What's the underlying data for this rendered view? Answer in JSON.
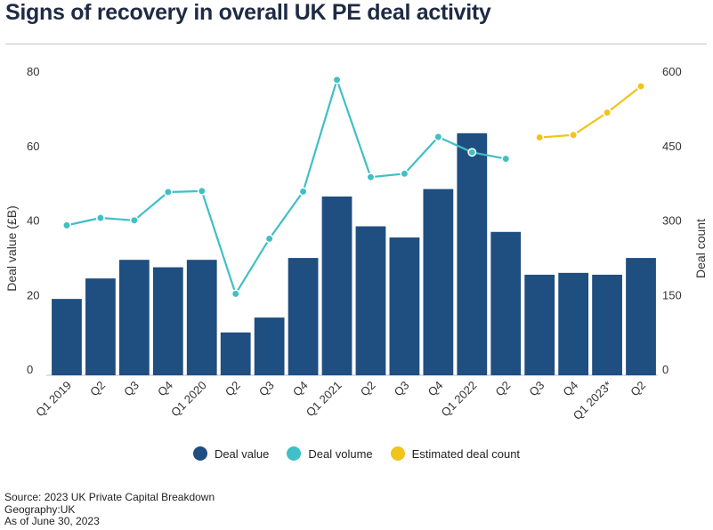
{
  "title": "Signs of recovery in overall UK PE deal activity",
  "footer": {
    "source": "Source: 2023 UK Private Capital Breakdown",
    "geography": "Geography:UK",
    "as_of": "As of June 30, 2023"
  },
  "legend": {
    "deal_value": "Deal value",
    "deal_volume": "Deal volume",
    "estimated": "Estimated deal count"
  },
  "colors": {
    "bar": "#1f4e80",
    "volume": "#3fbfc6",
    "estimated": "#f0c419"
  },
  "chart_data": {
    "type": "bar",
    "categories": [
      "Q1 2019",
      "Q2",
      "Q3",
      "Q4",
      "Q1 2020",
      "Q2",
      "Q3",
      "Q4",
      "Q1 2021",
      "Q2",
      "Q3",
      "Q4",
      "Q1 2022",
      "Q2",
      "Q3",
      "Q4",
      "Q1 2023*",
      "Q2"
    ],
    "series": [
      {
        "name": "Deal value",
        "type": "bar",
        "axis": "left",
        "values": [
          20.5,
          26,
          31,
          29,
          31,
          11.5,
          15.5,
          31.5,
          48,
          40,
          37,
          50,
          65,
          38.5,
          27,
          27.5,
          27,
          31.5
        ]
      },
      {
        "name": "Deal volume",
        "type": "line",
        "axis": "right",
        "values": [
          302,
          317,
          312,
          369,
          371,
          164,
          275,
          370,
          595,
          399,
          406,
          480,
          449,
          436,
          null,
          null,
          null,
          null
        ]
      },
      {
        "name": "Estimated deal count",
        "type": "line",
        "axis": "right",
        "values": [
          null,
          null,
          null,
          null,
          null,
          null,
          null,
          null,
          null,
          null,
          null,
          null,
          null,
          null,
          479,
          484,
          529,
          582
        ]
      }
    ],
    "ylabel": "Deal value (£B)",
    "y2label": "Deal count",
    "ylim": [
      0,
      80
    ],
    "y2lim": [
      0,
      600
    ],
    "yticks": [
      0,
      20,
      40,
      60,
      80
    ],
    "y2ticks": [
      0,
      150,
      300,
      450,
      600
    ],
    "grid": false,
    "legend_position": "bottom"
  }
}
